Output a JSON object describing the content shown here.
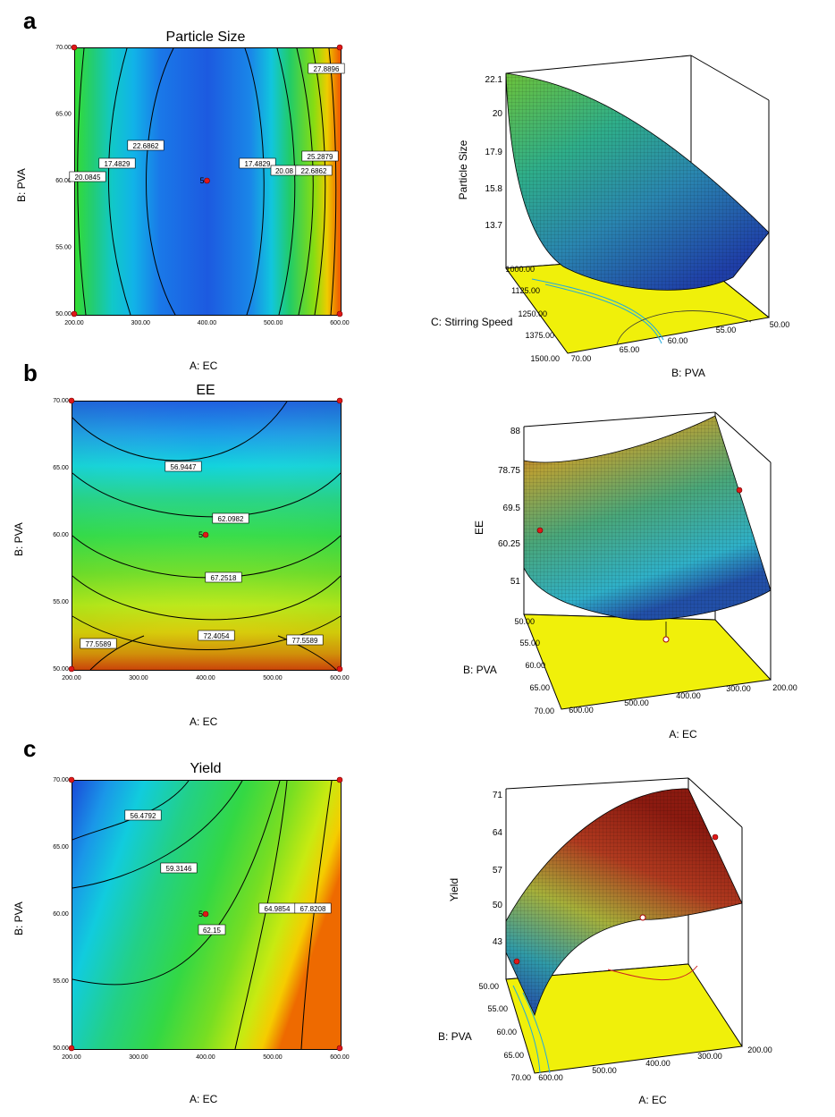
{
  "panels": {
    "a": {
      "letter": "a"
    },
    "b": {
      "letter": "b"
    },
    "c": {
      "letter": "c"
    }
  },
  "chart_data": [
    {
      "id": "a-contour",
      "type": "heatmap",
      "title": "Particle Size",
      "xlabel": "A: EC",
      "ylabel": "B: PVA",
      "xlim": [
        200,
        600
      ],
      "ylim": [
        50,
        70
      ],
      "x_ticks": [
        "200.00",
        "300.00",
        "400.00",
        "500.00",
        "600.00"
      ],
      "y_ticks": [
        "50.00",
        "55.00",
        "60.00",
        "65.00",
        "70.00"
      ],
      "contour_labels": [
        "27.8896",
        "22.6862",
        "17.4829",
        "20.0845",
        "17.4829",
        "20.08",
        "22.6862",
        "25.2879"
      ],
      "center_point": {
        "x": 400,
        "y": 60,
        "label": "5"
      },
      "design_points": [
        {
          "x": 200,
          "y": 50
        },
        {
          "x": 200,
          "y": 70
        },
        {
          "x": 600,
          "y": 50
        },
        {
          "x": 600,
          "y": 70
        }
      ]
    },
    {
      "id": "a-surface",
      "type": "area",
      "zlabel": "Particle Size",
      "z_ticks": [
        "22.1",
        "20",
        "17.9",
        "15.8",
        "13.7"
      ],
      "axis1_label": "C: Stirring Speed",
      "axis1_ticks": [
        "1000.00",
        "1125.00",
        "1250.00",
        "1375.00",
        "1500.00"
      ],
      "axis2_label": "B: PVA",
      "axis2_ticks": [
        "70.00",
        "65.00",
        "60.00",
        "55.00",
        "50.00"
      ]
    },
    {
      "id": "b-contour",
      "type": "heatmap",
      "title": "EE",
      "xlabel": "A: EC",
      "ylabel": "B: PVA",
      "xlim": [
        200,
        600
      ],
      "ylim": [
        50,
        70
      ],
      "x_ticks": [
        "200.00",
        "300.00",
        "400.00",
        "500.00",
        "600.00"
      ],
      "y_ticks": [
        "50.00",
        "55.00",
        "60.00",
        "65.00",
        "70.00"
      ],
      "contour_labels": [
        "56.9447",
        "62.0982",
        "67.2518",
        "72.4054",
        "77.5589",
        "77.5589"
      ],
      "center_point": {
        "x": 400,
        "y": 60,
        "label": "5"
      },
      "design_points": [
        {
          "x": 200,
          "y": 50
        },
        {
          "x": 200,
          "y": 70
        },
        {
          "x": 600,
          "y": 50
        },
        {
          "x": 600,
          "y": 70
        }
      ]
    },
    {
      "id": "b-surface",
      "type": "area",
      "zlabel": "EE",
      "z_ticks": [
        "88",
        "78.75",
        "69.5",
        "60.25",
        "51"
      ],
      "axis1_label": "B: PVA",
      "axis1_ticks": [
        "50.00",
        "55.00",
        "60.00",
        "65.00",
        "70.00"
      ],
      "axis2_label": "A: EC",
      "axis2_ticks": [
        "600.00",
        "500.00",
        "400.00",
        "300.00",
        "200.00"
      ]
    },
    {
      "id": "c-contour",
      "type": "heatmap",
      "title": "Yield",
      "xlabel": "A: EC",
      "ylabel": "B: PVA",
      "xlim": [
        200,
        600
      ],
      "ylim": [
        50,
        70
      ],
      "x_ticks": [
        "200.00",
        "300.00",
        "400.00",
        "500.00",
        "600.00"
      ],
      "y_ticks": [
        "50.00",
        "55.00",
        "60.00",
        "65.00",
        "70.00"
      ],
      "contour_labels": [
        "56.4792",
        "59.3146",
        "62.15",
        "64.9854",
        "67.8208"
      ],
      "center_point": {
        "x": 400,
        "y": 60,
        "label": "5"
      },
      "design_points": [
        {
          "x": 200,
          "y": 50
        },
        {
          "x": 200,
          "y": 70
        },
        {
          "x": 600,
          "y": 50
        },
        {
          "x": 600,
          "y": 70
        }
      ]
    },
    {
      "id": "c-surface",
      "type": "area",
      "zlabel": "Yield",
      "z_ticks": [
        "71",
        "64",
        "57",
        "50",
        "43"
      ],
      "axis1_label": "B: PVA",
      "axis1_ticks": [
        "50.00",
        "55.00",
        "60.00",
        "65.00",
        "70.00"
      ],
      "axis2_label": "A: EC",
      "axis2_ticks": [
        "600.00",
        "500.00",
        "400.00",
        "300.00",
        "200.00"
      ]
    }
  ]
}
